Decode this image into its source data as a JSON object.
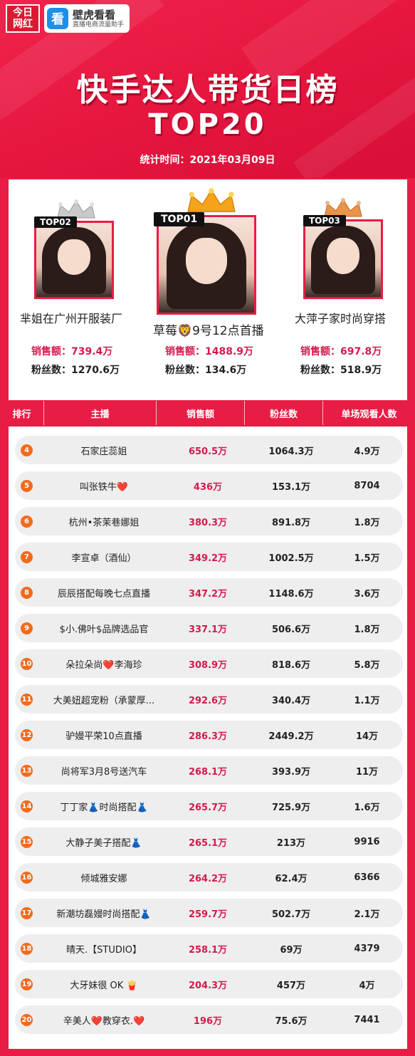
{
  "header": {
    "logo_jinri": "今日\n网红",
    "logo_bihu_icon": "看",
    "logo_bihu_name": "壁虎看看",
    "logo_bihu_tagline": "直播电商流量助手",
    "title": "快手达人带货日榜",
    "subtitle": "TOP20",
    "date": "统计时间：2021年03月09日"
  },
  "top3": [
    {
      "badge": "TOP02",
      "name": "芈姐在广州开服装厂",
      "sales": "销售额：739.4万",
      "fans": "粉丝数：1270.6万"
    },
    {
      "badge": "TOP01",
      "name": "草莓🦁9号12点首播",
      "sales": "销售额：1488.9万",
      "fans": "粉丝数：134.6万"
    },
    {
      "badge": "TOP03",
      "name": "大萍子家时尚穿搭",
      "sales": "销售额：697.8万",
      "fans": "粉丝数：518.9万"
    }
  ],
  "table": {
    "headers": [
      "排行",
      "主播",
      "销售额",
      "粉丝数",
      "单场观看人数"
    ],
    "rows": [
      {
        "rank": "4",
        "name": "石家庄蕊姐",
        "sales": "650.5万",
        "fans": "1064.3万",
        "views": "4.9万"
      },
      {
        "rank": "5",
        "name": "叫张铁牛❤️",
        "sales": "436万",
        "fans": "153.1万",
        "views": "8704"
      },
      {
        "rank": "6",
        "name": "杭州•茶茉巷娜姐",
        "sales": "380.3万",
        "fans": "891.8万",
        "views": "1.8万"
      },
      {
        "rank": "7",
        "name": "李宣卓（酒仙）",
        "sales": "349.2万",
        "fans": "1002.5万",
        "views": "1.5万"
      },
      {
        "rank": "8",
        "name": "辰辰搭配每晚七点直播",
        "sales": "347.2万",
        "fans": "1148.6万",
        "views": "3.6万"
      },
      {
        "rank": "9",
        "name": "$小.佛叶$品牌选品官",
        "sales": "337.1万",
        "fans": "506.6万",
        "views": "1.8万"
      },
      {
        "rank": "10",
        "name": "朵拉朵尚❤️李海珍",
        "sales": "308.9万",
        "fans": "818.6万",
        "views": "5.8万"
      },
      {
        "rank": "11",
        "name": "大美妞超宠粉（承蒙厚...",
        "sales": "292.6万",
        "fans": "340.4万",
        "views": "1.1万"
      },
      {
        "rank": "12",
        "name": "驴嫚平荣10点直播",
        "sales": "286.3万",
        "fans": "2449.2万",
        "views": "14万"
      },
      {
        "rank": "13",
        "name": "尚将军3月8号送汽车",
        "sales": "268.1万",
        "fans": "393.9万",
        "views": "11万"
      },
      {
        "rank": "14",
        "name": "丁丁家👗时尚搭配👗",
        "sales": "265.7万",
        "fans": "725.9万",
        "views": "1.6万"
      },
      {
        "rank": "15",
        "name": "大静子美子搭配👗",
        "sales": "265.1万",
        "fans": "213万",
        "views": "9916"
      },
      {
        "rank": "16",
        "name": "倾城雅安娜",
        "sales": "264.2万",
        "fans": "62.4万",
        "views": "6366"
      },
      {
        "rank": "17",
        "name": "新潮坊磊嫚时尚搭配👗",
        "sales": "259.7万",
        "fans": "502.7万",
        "views": "2.1万"
      },
      {
        "rank": "18",
        "name": "晴天.【STUDIO】",
        "sales": "258.1万",
        "fans": "69万",
        "views": "4379"
      },
      {
        "rank": "19",
        "name": "大牙妹很 OK 🍟",
        "sales": "204.3万",
        "fans": "457万",
        "views": "4万"
      },
      {
        "rank": "20",
        "name": "辛美人❤️教穿衣.❤️",
        "sales": "196万",
        "fans": "75.6万",
        "views": "7441"
      }
    ]
  },
  "colors": {
    "brand_red": "#e81d45",
    "sales_red": "#d51a4c",
    "rank_orange": "#f26b1d",
    "crown_gold": "#f5a31a",
    "crown_silver": "#c9c9c9",
    "crown_bronze": "#e8944a"
  }
}
